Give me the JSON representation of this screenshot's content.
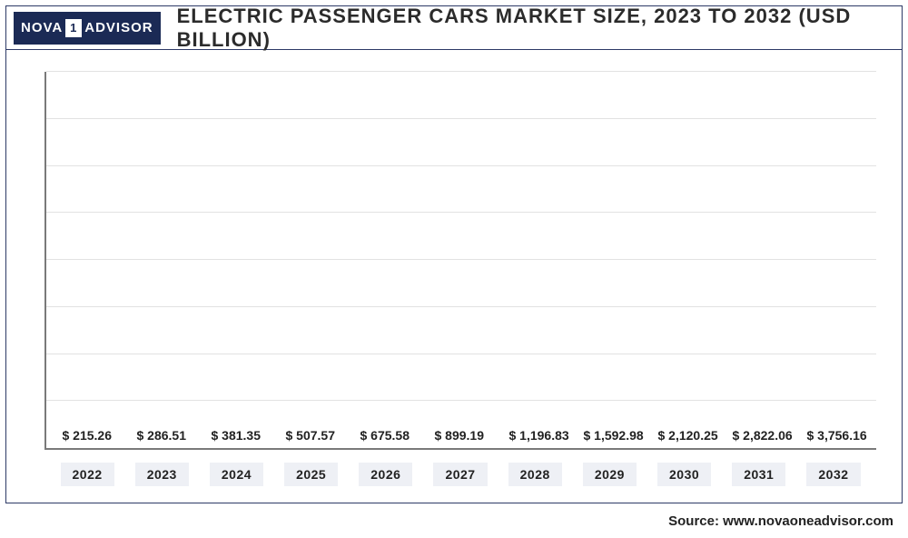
{
  "logo": {
    "part1": "NOVA",
    "one": "1",
    "part2": "ADVISOR"
  },
  "title": "ELECTRIC PASSENGER CARS MARKET SIZE, 2023 TO 2032 (USD BILLION)",
  "chart": {
    "type": "bar",
    "ylim_max": 4000,
    "gridlines": [
      500,
      1000,
      1500,
      2000,
      2500,
      3000,
      3500,
      4000
    ],
    "grid_color": "#e2e2e2",
    "axis_color": "#7a7a7a",
    "background_color": "#ffffff",
    "xlabel_bg": "#eef0f5",
    "value_prefix": "$ ",
    "label_fontsize": 14,
    "data": [
      {
        "year": "2022",
        "value": 215.26,
        "label": "$ 215.26",
        "color": "#a8b8dc"
      },
      {
        "year": "2023",
        "value": 286.51,
        "label": "$ 286.51",
        "color": "#5a6a94"
      },
      {
        "year": "2024",
        "value": 381.35,
        "label": "$ 381.35",
        "color": "#445685"
      },
      {
        "year": "2025",
        "value": 507.57,
        "label": "$ 507.57",
        "color": "#3a4d7e"
      },
      {
        "year": "2026",
        "value": 675.58,
        "label": "$ 675.58",
        "color": "#2c3e6e"
      },
      {
        "year": "2027",
        "value": 899.19,
        "label": "$ 899.19",
        "color": "#283a68"
      },
      {
        "year": "2028",
        "value": 1196.83,
        "label": "$ 1,196.83",
        "color": "#1f2f5a"
      },
      {
        "year": "2029",
        "value": 1592.98,
        "label": "$ 1,592.98",
        "color": "#1a2850"
      },
      {
        "year": "2030",
        "value": 2120.25,
        "label": "$ 2,120.25",
        "color": "#152146"
      },
      {
        "year": "2031",
        "value": 2822.06,
        "label": "$ 2,822.06",
        "color": "#101a3c"
      },
      {
        "year": "2032",
        "value": 3756.16,
        "label": "$ 3,756.16",
        "color": "#0d1636"
      }
    ]
  },
  "source": "Source: www.novaoneadvisor.com"
}
